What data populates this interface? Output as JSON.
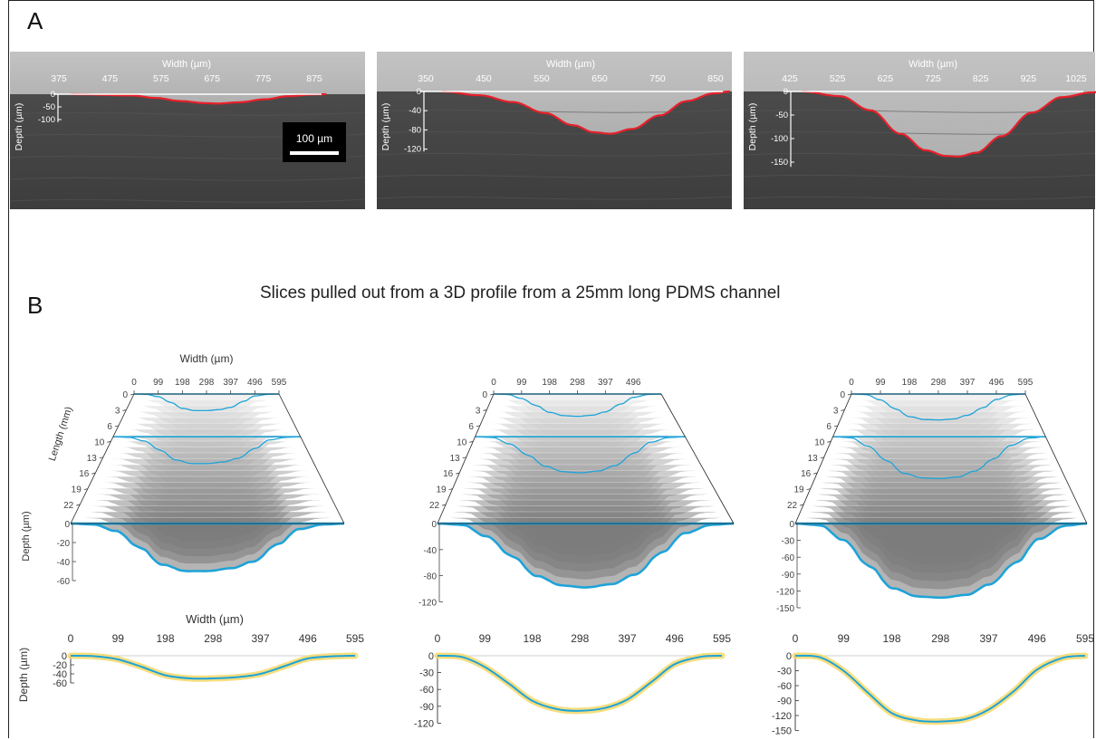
{
  "panels": {
    "a_label": "A",
    "b_label": "B",
    "b_title": "Slices pulled out from a 3D profile from a 25mm long PDMS channel"
  },
  "colors": {
    "red_trace": "#e8202a",
    "blue_trace": "#1ea3d8",
    "yellow_band": "#f6d86a",
    "image_dark": "#4a4a4a",
    "image_light": "#c8c8c8"
  },
  "chart_data": [
    {
      "type": "line",
      "panel": "A",
      "xlabel": "Width (µm)",
      "ylabel": "Depth (µm)",
      "x_ticks": [
        "375",
        "475",
        "575",
        "675",
        "775",
        "875"
      ],
      "y_ticks": [
        "0",
        "-50",
        "-100"
      ],
      "y_tick_display": "0\n-50\n-100",
      "xlim": [
        350,
        950
      ],
      "ylim": [
        -110,
        0
      ],
      "scale_bar": "100 µm",
      "series": [
        {
          "x": [
            375,
            500,
            550,
            600,
            650,
            675,
            720,
            775,
            820,
            875,
            900
          ],
          "y": [
            0,
            -5,
            -15,
            -27,
            -35,
            -37,
            -32,
            -20,
            -8,
            -1,
            0
          ]
        }
      ]
    },
    {
      "type": "line",
      "panel": "A",
      "xlabel": "Width (µm)",
      "ylabel": "Depth (µm)",
      "x_ticks": [
        "350",
        "450",
        "550",
        "650",
        "750",
        "850"
      ],
      "y_ticks": [
        "0",
        "-40",
        "-80",
        "-120"
      ],
      "xlim": [
        320,
        920
      ],
      "ylim": [
        -125,
        0
      ],
      "series": [
        {
          "x": [
            350,
            420,
            480,
            540,
            590,
            630,
            660,
            700,
            750,
            800,
            850,
            880
          ],
          "y": [
            0,
            -8,
            -22,
            -45,
            -70,
            -85,
            -88,
            -78,
            -50,
            -20,
            -4,
            0
          ]
        }
      ]
    },
    {
      "type": "line",
      "panel": "A",
      "xlabel": "Width (µm)",
      "ylabel": "Depth (µm)",
      "x_ticks": [
        "425",
        "525",
        "625",
        "725",
        "825",
        "925",
        "1025"
      ],
      "y_ticks": [
        "0",
        "-50",
        "-100",
        "-150"
      ],
      "xlim": [
        400,
        1040
      ],
      "ylim": [
        -160,
        0
      ],
      "series": [
        {
          "x": [
            425,
            500,
            560,
            620,
            670,
            710,
            735,
            770,
            820,
            880,
            940,
            1000,
            1025
          ],
          "y": [
            0,
            -10,
            -40,
            -90,
            -125,
            -137,
            -138,
            -130,
            -95,
            -45,
            -12,
            -2,
            0
          ]
        }
      ]
    },
    {
      "type": "area",
      "panel": "B-3D",
      "xlabel": "Width (µm)",
      "zlabel": "Length (mm)",
      "ylabel": "Depth (µm)",
      "x_ticks": [
        "0",
        "99",
        "198",
        "298",
        "397",
        "496",
        "595"
      ],
      "z_ticks": [
        "0",
        "3",
        "6",
        "10",
        "13",
        "16",
        "19",
        "22"
      ],
      "y_ticks": [
        "0",
        "-20",
        "-40",
        "-60"
      ],
      "ylim": [
        -60,
        0
      ]
    },
    {
      "type": "area",
      "panel": "B-3D",
      "x_ticks": [
        "0",
        "99",
        "198",
        "298",
        "397",
        "496"
      ],
      "z_ticks": [
        "0",
        "3",
        "6",
        "10",
        "13",
        "16",
        "19",
        "22"
      ],
      "y_ticks": [
        "0",
        "-40",
        "-80",
        "-120"
      ],
      "ylim": [
        -120,
        0
      ]
    },
    {
      "type": "area",
      "panel": "B-3D",
      "x_ticks": [
        "0",
        "99",
        "198",
        "298",
        "397",
        "496",
        "595"
      ],
      "z_ticks": [
        "0",
        "3",
        "6",
        "10",
        "13",
        "16",
        "19",
        "22"
      ],
      "y_ticks": [
        "0",
        "-30",
        "-60",
        "-90",
        "-120",
        "-150"
      ],
      "ylim": [
        -150,
        0
      ]
    },
    {
      "type": "line",
      "panel": "B-2D",
      "xlabel": "Width (µm)",
      "ylabel": "Depth (µm)",
      "x_ticks": [
        "0",
        "99",
        "198",
        "298",
        "397",
        "496",
        "595"
      ],
      "y_ticks": [
        "0",
        "-20",
        "-40",
        "-60"
      ],
      "xlim": [
        0,
        595
      ],
      "ylim": [
        -60,
        0
      ],
      "series": [
        {
          "x": [
            0,
            50,
            99,
            150,
            198,
            250,
            298,
            350,
            397,
            450,
            496,
            550,
            595
          ],
          "y": [
            0,
            -1,
            -8,
            -25,
            -43,
            -50,
            -50,
            -47,
            -40,
            -22,
            -6,
            -1,
            0
          ]
        }
      ]
    },
    {
      "type": "line",
      "panel": "B-2D",
      "x_ticks": [
        "0",
        "99",
        "198",
        "298",
        "397",
        "496",
        "595"
      ],
      "y_ticks": [
        "0",
        "-30",
        "-60",
        "-90",
        "-120"
      ],
      "xlim": [
        0,
        595
      ],
      "ylim": [
        -120,
        0
      ],
      "series": [
        {
          "x": [
            0,
            50,
            99,
            150,
            198,
            250,
            298,
            350,
            397,
            450,
            496,
            550,
            595
          ],
          "y": [
            0,
            -2,
            -20,
            -50,
            -80,
            -95,
            -98,
            -93,
            -78,
            -45,
            -15,
            -2,
            0
          ]
        }
      ]
    },
    {
      "type": "line",
      "panel": "B-2D",
      "x_ticks": [
        "0",
        "99",
        "198",
        "298",
        "397",
        "496",
        "595"
      ],
      "y_ticks": [
        "0",
        "-30",
        "-60",
        "-90",
        "-120",
        "-150"
      ],
      "xlim": [
        0,
        595
      ],
      "ylim": [
        -150,
        0
      ],
      "series": [
        {
          "x": [
            0,
            50,
            99,
            150,
            198,
            250,
            298,
            350,
            397,
            450,
            496,
            550,
            595
          ],
          "y": [
            0,
            -3,
            -30,
            -75,
            -115,
            -130,
            -132,
            -127,
            -108,
            -70,
            -28,
            -4,
            0
          ]
        }
      ]
    }
  ]
}
